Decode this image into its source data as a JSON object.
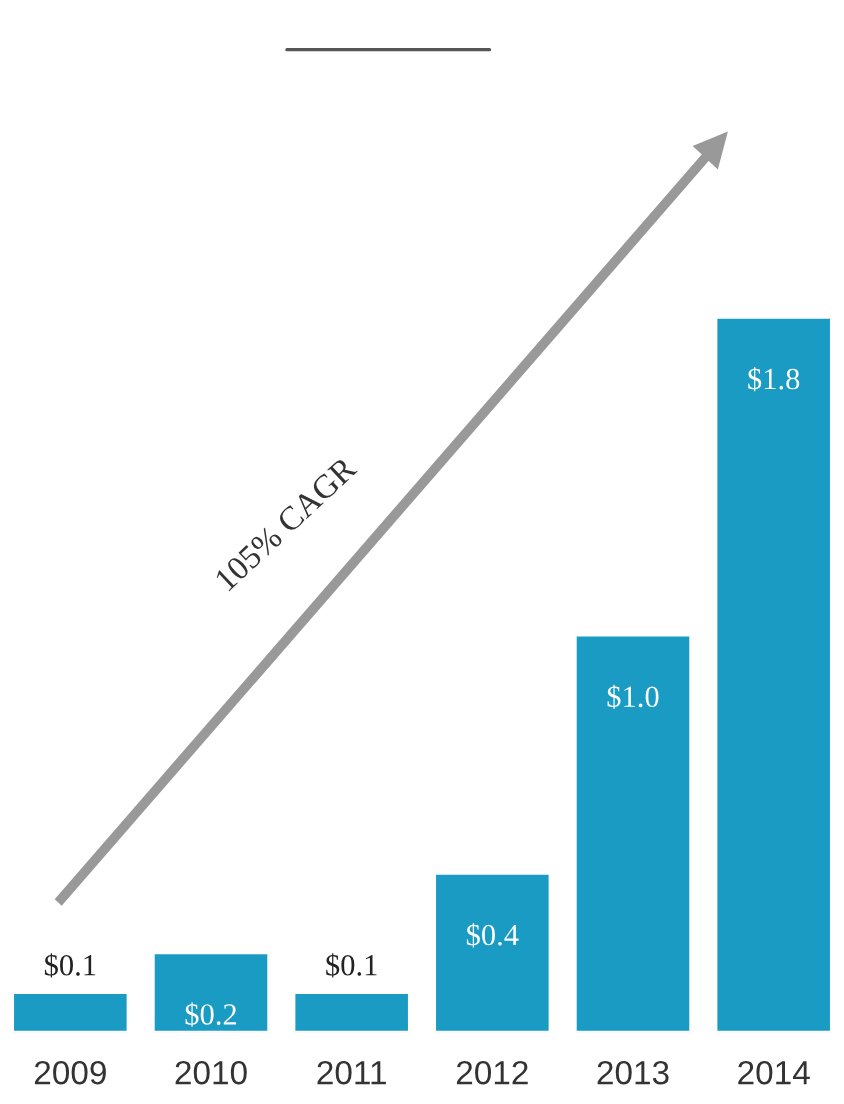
{
  "chart_data": {
    "type": "bar",
    "categories": [
      "2009",
      "2010",
      "2011",
      "2012",
      "2013",
      "2014"
    ],
    "values": [
      0.1,
      0.2,
      0.1,
      0.4,
      1.0,
      1.8
    ],
    "value_labels": [
      "$0.1",
      "$0.2",
      "$0.1",
      "$0.4",
      "$1.0",
      "$1.8"
    ],
    "color": "#1a9bc4",
    "annotations": [
      "105% CAGR"
    ],
    "grid": false,
    "legend": false
  }
}
